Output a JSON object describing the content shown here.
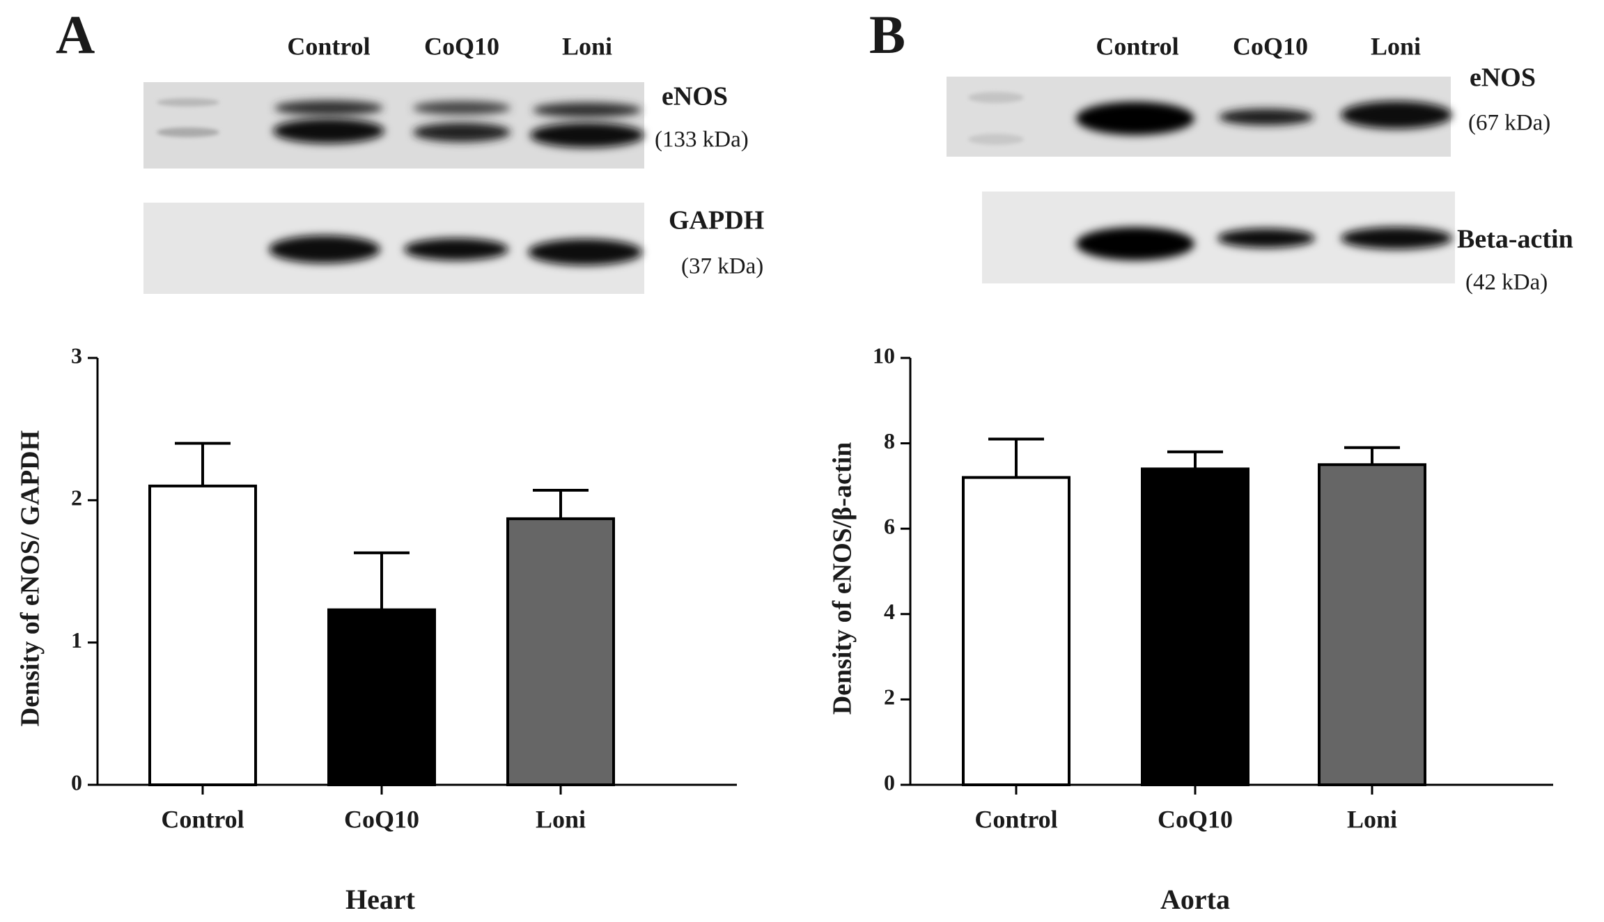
{
  "chart_data": [
    {
      "type": "bar",
      "panel": "A",
      "blot": {
        "lanes": [
          "Control",
          "CoQ10",
          "Loni"
        ],
        "labels": [
          "eNOS",
          "(133 kDa)",
          "GAPDH",
          "(37 kDa)"
        ]
      },
      "categories": [
        "Control",
        "CoQ10",
        "Loni"
      ],
      "values": [
        2.1,
        1.23,
        1.87
      ],
      "errors": [
        0.3,
        0.4,
        0.2
      ],
      "colors": [
        "#ffffff",
        "#000000",
        "#666666"
      ],
      "ylabel": "Density of eNOS/ GAPDH",
      "xlabel": "Heart",
      "ylim": [
        0,
        3
      ],
      "yticks": [
        0,
        1,
        2,
        3
      ]
    },
    {
      "type": "bar",
      "panel": "B",
      "blot": {
        "lanes": [
          "Control",
          "CoQ10",
          "Loni"
        ],
        "labels": [
          "eNOS",
          "(67 kDa)",
          "Beta-actin",
          "(42 kDa)"
        ]
      },
      "categories": [
        "Control",
        "CoQ10",
        "Loni"
      ],
      "values": [
        7.2,
        7.4,
        7.5
      ],
      "errors": [
        0.9,
        0.4,
        0.4
      ],
      "colors": [
        "#ffffff",
        "#000000",
        "#666666"
      ],
      "ylabel": "Density of eNOS/β-actin",
      "xlabel": "Aorta",
      "ylim": [
        0,
        10
      ],
      "yticks": [
        0,
        2,
        4,
        6,
        8,
        10
      ]
    }
  ]
}
